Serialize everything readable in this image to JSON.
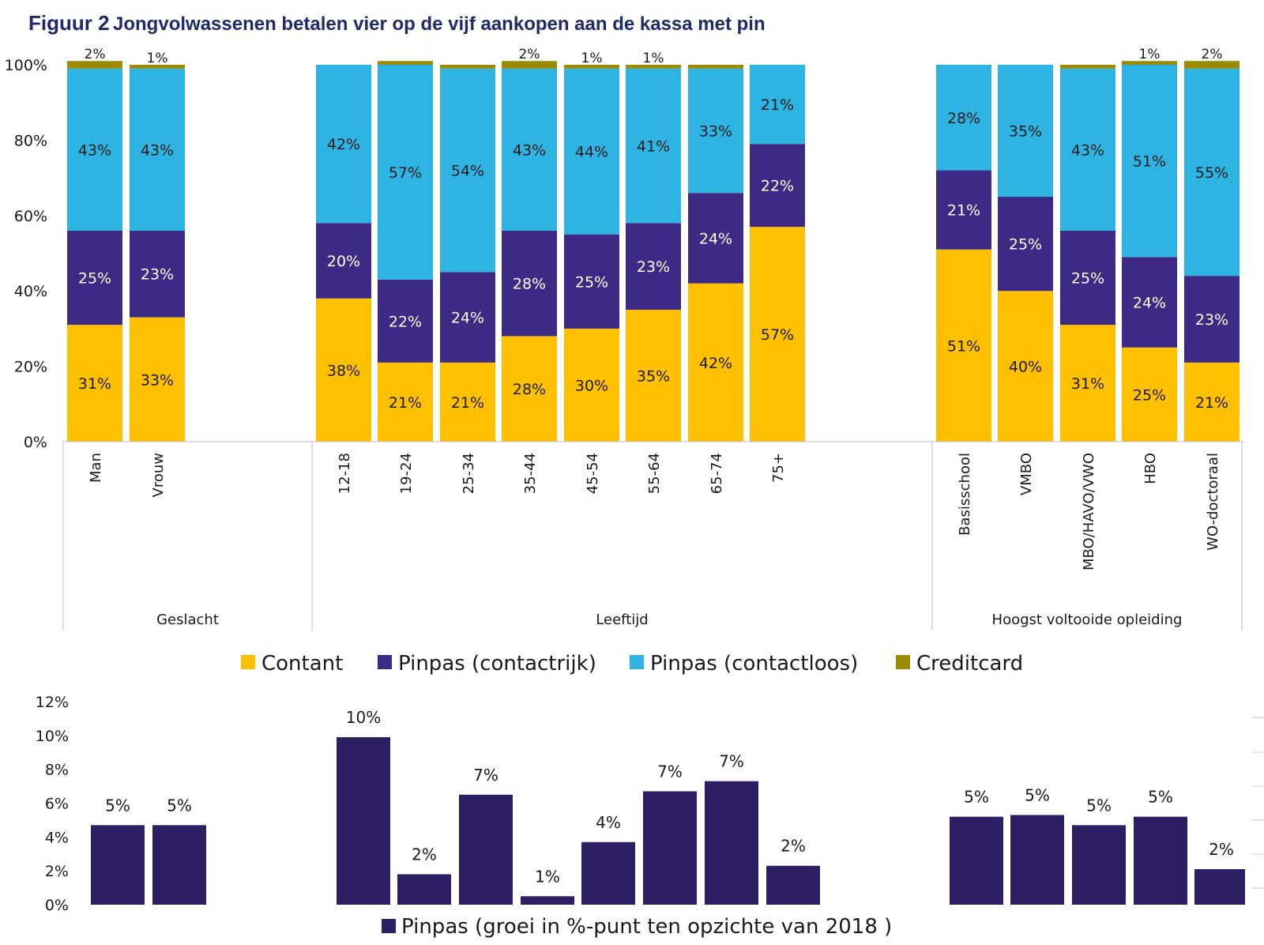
{
  "figure": {
    "label": "Figuur 2",
    "title": "Jongvolwassenen betalen vier op de vijf aankopen aan de kassa met pin"
  },
  "colors": {
    "Contant": "#FFC000",
    "Pinpas (contactrijk)": "#3D2A84",
    "Pinpas (contactloos)": "#2DB4E2",
    "Creditcard": "#9C8A00",
    "growth": "#2E1E64"
  },
  "chart_data": [
    {
      "type": "bar",
      "stacked": true,
      "ylim": [
        0,
        100
      ],
      "yticks": [
        "0%",
        "20%",
        "40%",
        "60%",
        "80%",
        "100%"
      ],
      "groups": [
        {
          "name": "Geslacht",
          "categories": [
            "Man",
            "Vrouw"
          ]
        },
        {
          "name": "Leeftijd",
          "categories": [
            "12-18",
            "19-24",
            "25-34",
            "35-44",
            "45-54",
            "55-64",
            "65-74",
            "75+"
          ]
        },
        {
          "name": "Hoogst voltooide opleiding",
          "categories": [
            "Basisschool",
            "VMBO",
            "MBO/HAVO/VWO",
            "HBO",
            "WO-doctoraal"
          ]
        }
      ],
      "categories": [
        "Man",
        "Vrouw",
        "12-18",
        "19-24",
        "25-34",
        "35-44",
        "45-54",
        "55-64",
        "65-74",
        "75+",
        "Basisschool",
        "VMBO",
        "MBO/HAVO/VWO",
        "HBO",
        "WO-doctoraal"
      ],
      "series": [
        {
          "name": "Contant",
          "values": [
            31,
            33,
            38,
            21,
            21,
            28,
            30,
            35,
            42,
            57,
            51,
            40,
            31,
            25,
            21
          ],
          "labels": [
            "31%",
            "33%",
            "38%",
            "21%",
            "21%",
            "28%",
            "30%",
            "35%",
            "42%",
            "57%",
            "51%",
            "40%",
            "31%",
            "25%",
            "21%"
          ]
        },
        {
          "name": "Pinpas (contactrijk)",
          "values": [
            25,
            23,
            20,
            22,
            24,
            28,
            25,
            23,
            24,
            22,
            21,
            25,
            25,
            24,
            23
          ],
          "labels": [
            "25%",
            "23%",
            "20%",
            "22%",
            "24%",
            "28%",
            "25%",
            "23%",
            "24%",
            "22%",
            "21%",
            "25%",
            "25%",
            "24%",
            "23%"
          ]
        },
        {
          "name": "Pinpas (contactloos)",
          "values": [
            43,
            43,
            42,
            57,
            54,
            43,
            44,
            41,
            33,
            21,
            28,
            35,
            43,
            51,
            55
          ],
          "labels": [
            "43%",
            "43%",
            "42%",
            "57%",
            "54%",
            "43%",
            "44%",
            "41%",
            "33%",
            "21%",
            "28%",
            "35%",
            "43%",
            "51%",
            "55%"
          ]
        },
        {
          "name": "Creditcard",
          "values": [
            2,
            1,
            0,
            1,
            1,
            2,
            1,
            1,
            1,
            0,
            0,
            0,
            1,
            1,
            2
          ],
          "labels": [
            "2%",
            "1%",
            "",
            "",
            "",
            "2%",
            "1%",
            "1%",
            "",
            "",
            "",
            "",
            "",
            "1%",
            "2%"
          ]
        }
      ],
      "legend": [
        "Contant",
        "Pinpas (contactrijk)",
        "Pinpas (contactloos)",
        "Creditcard"
      ],
      "legend_position": "bottom"
    },
    {
      "type": "bar",
      "ylim": [
        0,
        12
      ],
      "yticks": [
        "0%",
        "2%",
        "4%",
        "6%",
        "8%",
        "10%",
        "12%"
      ],
      "categories": [
        "Man",
        "Vrouw",
        "12-18",
        "19-24",
        "25-34",
        "35-44",
        "45-54",
        "55-64",
        "65-74",
        "75+",
        "Basisschool",
        "VMBO",
        "MBO/HAVO/VWO",
        "HBO",
        "WO-doctoraal"
      ],
      "series": [
        {
          "name": "Pinpas (groei in %-punt ten opzichte van 2018 )",
          "values": [
            4.7,
            4.7,
            9.9,
            1.8,
            6.5,
            0.5,
            3.7,
            6.7,
            7.3,
            2.3,
            5.2,
            5.3,
            4.7,
            5.2,
            2.1
          ],
          "labels": [
            "5%",
            "5%",
            "10%",
            "2%",
            "7%",
            "1%",
            "4%",
            "7%",
            "7%",
            "2%",
            "5%",
            "5%",
            "5%",
            "5%",
            "2%"
          ]
        }
      ],
      "legend": [
        "Pinpas (groei in %-punt ten opzichte van 2018 )"
      ],
      "legend_position": "bottom"
    }
  ]
}
